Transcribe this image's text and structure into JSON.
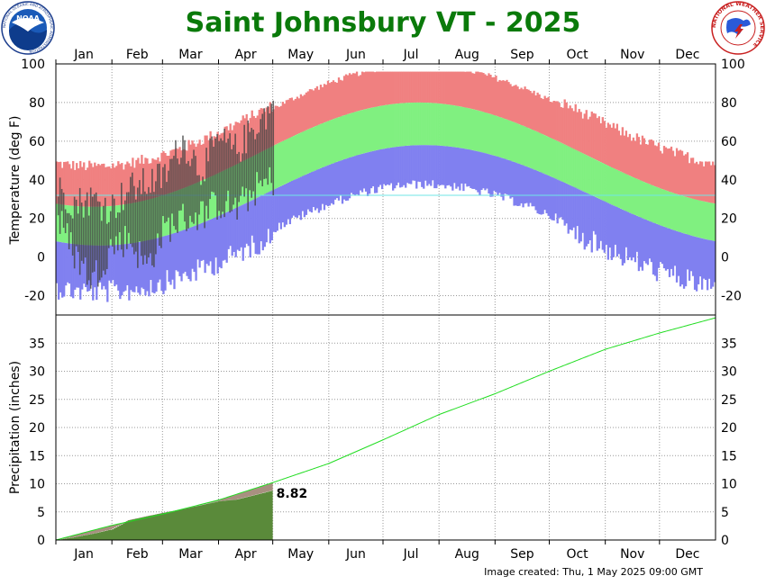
{
  "title": "Saint Johnsbury VT - 2025",
  "footer": "Image created: Thu, 1 May 2025 09:00 GMT",
  "logos": {
    "left": {
      "icon": "noaa-logo",
      "text": "NOAA",
      "ring_text": "NATIONAL OCEANIC AND ATMOSPHERIC ADMINISTRATION"
    },
    "right": {
      "icon": "nws-logo",
      "ring_text": "NATIONAL WEATHER SERVICE"
    }
  },
  "colors": {
    "title": "#0a7a0a",
    "record_high": "#f08080",
    "normal_band": "#80f080",
    "record_low": "#8080f0",
    "observed": "#444444",
    "freezing_line": "#6fe6e6",
    "normal_precip": "#22dd22",
    "observed_precip_fill": "#5a8a3a",
    "precip_deficit_fill": "#a89080"
  },
  "chart_data": [
    {
      "type": "area",
      "panel": "temperature",
      "ylabel": "Temperature (deg F)",
      "ylim": [
        -30,
        100
      ],
      "yticks": [
        -20,
        0,
        20,
        40,
        60,
        80,
        100
      ],
      "grid": true,
      "months": [
        "Jan",
        "Feb",
        "Mar",
        "Apr",
        "May",
        "Jun",
        "Jul",
        "Aug",
        "Sep",
        "Oct",
        "Nov",
        "Dec"
      ],
      "normal_high": {
        "min": 26,
        "min_day": 20,
        "max": 80,
        "max_day": 200
      },
      "normal_low": {
        "min": 6,
        "min_day": 24,
        "max": 58,
        "max_day": 203
      },
      "record_high_offset": [
        18,
        24
      ],
      "record_low_offset": [
        18,
        30
      ],
      "freezing_line": 32,
      "observed_through_day": 120,
      "observed_sample": [
        {
          "day": 1,
          "high": 35,
          "low": 20
        },
        {
          "day": 10,
          "high": 28,
          "low": 2
        },
        {
          "day": 20,
          "high": 30,
          "low": -12
        },
        {
          "day": 30,
          "high": 25,
          "low": 5
        },
        {
          "day": 40,
          "high": 35,
          "low": 10
        },
        {
          "day": 50,
          "high": 38,
          "low": -5
        },
        {
          "day": 60,
          "high": 42,
          "low": 15
        },
        {
          "day": 70,
          "high": 60,
          "low": 20
        },
        {
          "day": 80,
          "high": 45,
          "low": 22
        },
        {
          "day": 90,
          "high": 60,
          "low": 28
        },
        {
          "day": 100,
          "high": 55,
          "low": 25
        },
        {
          "day": 110,
          "high": 68,
          "low": 35
        },
        {
          "day": 120,
          "high": 78,
          "low": 40
        }
      ]
    },
    {
      "type": "line",
      "panel": "precipitation",
      "ylabel": "Precipitation (inches)",
      "ylim": [
        0,
        40
      ],
      "yticks": [
        0,
        5,
        10,
        15,
        20,
        25,
        30,
        35
      ],
      "grid": true,
      "months": [
        "Jan",
        "Feb",
        "Mar",
        "Apr",
        "May",
        "Jun",
        "Jul",
        "Aug",
        "Sep",
        "Oct",
        "Nov",
        "Dec"
      ],
      "normal_cumulative": {
        "x": [
          0,
          31,
          59,
          90,
          120,
          151,
          181,
          212,
          243,
          273,
          304,
          334,
          365
        ],
        "values": [
          0,
          2.6,
          4.6,
          7.1,
          10.2,
          13.6,
          17.8,
          22.3,
          26.0,
          30.0,
          33.9,
          36.8,
          39.5
        ]
      },
      "observed_cumulative": {
        "x": [
          0,
          10,
          20,
          31,
          40,
          50,
          59,
          70,
          80,
          90,
          100,
          105,
          110,
          120
        ],
        "values": [
          0,
          0.5,
          1.1,
          1.9,
          3.5,
          4.2,
          4.8,
          5.5,
          6.2,
          6.9,
          7.2,
          7.6,
          8.0,
          8.82
        ]
      },
      "observed_total_label": "8.82",
      "observed_total": 8.82
    }
  ]
}
